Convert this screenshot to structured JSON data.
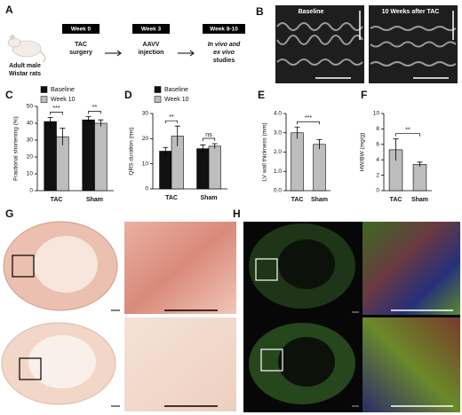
{
  "panel_labels": [
    "A",
    "B",
    "C",
    "D",
    "E",
    "F",
    "G",
    "H"
  ],
  "timeline": {
    "subject": [
      "Adult male",
      "Wistar rats"
    ],
    "steps": [
      {
        "week": "Week 0",
        "event": [
          "TAC",
          "surgery"
        ]
      },
      {
        "week": "Week 3",
        "event": [
          "AAVV",
          "injection"
        ]
      },
      {
        "week": "Week 8-10",
        "event": [
          "In vivo and",
          "ex vivo",
          "studies"
        ]
      }
    ]
  },
  "echo": {
    "labels": [
      "Baseline",
      "10 Weeks after TAC"
    ]
  },
  "chart_data": [
    {
      "type": "grouped-bar",
      "ylabel": "Fractional shortening (%)",
      "categories": [
        "TAC",
        "Sham"
      ],
      "series": [
        {
          "name": "Baseline",
          "color": "#111111",
          "values": [
            41,
            42
          ],
          "errors": [
            2.5,
            2
          ]
        },
        {
          "name": "Week 10",
          "color": "#bdbdbd",
          "values": [
            32,
            40
          ],
          "errors": [
            5,
            2
          ]
        }
      ],
      "ylim": [
        0,
        50
      ],
      "yticks": [
        0,
        10,
        20,
        30,
        40,
        50
      ],
      "annotations": [
        "***",
        "**"
      ]
    },
    {
      "type": "grouped-bar",
      "ylabel": "QRS duration (ms)",
      "categories": [
        "TAC",
        "Sham"
      ],
      "series": [
        {
          "name": "Baseline",
          "color": "#111111",
          "values": [
            15,
            16
          ],
          "errors": [
            1.5,
            1.5
          ]
        },
        {
          "name": "Week 10",
          "color": "#bdbdbd",
          "values": [
            21,
            17
          ],
          "errors": [
            4,
            1
          ]
        }
      ],
      "ylim": [
        0,
        30
      ],
      "yticks": [
        0,
        10,
        20,
        30
      ],
      "annotations": [
        "**",
        "ns"
      ]
    },
    {
      "type": "bar",
      "ylabel": "LV wall thickness (mm)",
      "categories": [
        "TAC",
        "Sham"
      ],
      "values": [
        3.0,
        2.4
      ],
      "errors": [
        0.3,
        0.25
      ],
      "color": "#bdbdbd",
      "ylim": [
        0,
        4
      ],
      "yticks": [
        {
          "value": 0,
          "label": "0.0"
        },
        {
          "value": 1,
          "label": "1.0"
        },
        {
          "value": 2,
          "label": "2.0"
        },
        {
          "value": 3,
          "label": "3.0"
        },
        {
          "value": 4,
          "label": "4.0"
        }
      ],
      "annotations": [
        "***"
      ]
    },
    {
      "type": "bar",
      "ylabel": "HW/BW (mg/g)",
      "categories": [
        "TAC",
        "Sham"
      ],
      "values": [
        5.3,
        3.4
      ],
      "errors": [
        1.4,
        0.3
      ],
      "color": "#bdbdbd",
      "ylim": [
        0,
        10
      ],
      "yticks": [
        0,
        2,
        4,
        6,
        8,
        10
      ],
      "annotations": [
        "**"
      ]
    }
  ]
}
